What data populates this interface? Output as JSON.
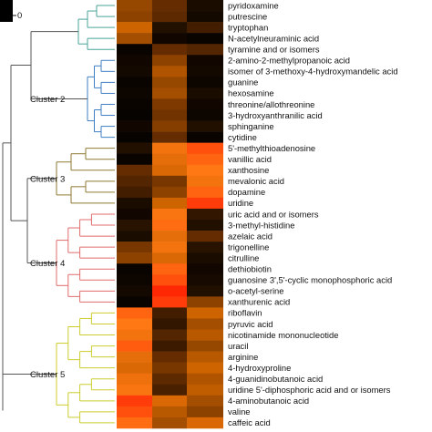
{
  "chart_data": {
    "type": "heatmap",
    "title": "",
    "legend_tick": "0",
    "columns": 3,
    "rows": [
      {
        "label": "pyridoxamine",
        "cluster": 1,
        "values": [
          0.42,
          0.3,
          0.08
        ]
      },
      {
        "label": "putrescine",
        "cluster": 1,
        "values": [
          0.4,
          0.28,
          0.06
        ]
      },
      {
        "label": "tryptophan",
        "cluster": 1,
        "values": [
          0.55,
          0.1,
          0.2
        ]
      },
      {
        "label": "N-acetylneuraminic acid",
        "cluster": 1,
        "values": [
          0.45,
          0.05,
          0.03
        ]
      },
      {
        "label": "tyramine and or isomers",
        "cluster": 1,
        "values": [
          0.03,
          0.3,
          0.25
        ]
      },
      {
        "label": "2-amino-2-methylpropanoic acid",
        "cluster": 2,
        "values": [
          0.05,
          0.4,
          0.05
        ]
      },
      {
        "label": "isomer of 3-methoxy-4-hydroxymandelic acid",
        "cluster": 2,
        "values": [
          0.06,
          0.48,
          0.06
        ]
      },
      {
        "label": "guanine",
        "cluster": 2,
        "values": [
          0.03,
          0.42,
          0.04
        ]
      },
      {
        "label": "hexosamine",
        "cluster": 2,
        "values": [
          0.04,
          0.45,
          0.08
        ]
      },
      {
        "label": "threonine/allothreonine",
        "cluster": 2,
        "values": [
          0.03,
          0.36,
          0.05
        ]
      },
      {
        "label": "3-hydroxyanthranilic acid",
        "cluster": 2,
        "values": [
          0.02,
          0.33,
          0.04
        ]
      },
      {
        "label": "sphinganine",
        "cluster": 2,
        "values": [
          0.05,
          0.38,
          0.1
        ]
      },
      {
        "label": "cytidine",
        "cluster": 2,
        "values": [
          0.02,
          0.3,
          0.03
        ]
      },
      {
        "label": "5'-methylthioadenosine",
        "cluster": 3,
        "values": [
          0.1,
          0.7,
          0.85
        ]
      },
      {
        "label": "vanillic acid",
        "cluster": 3,
        "values": [
          0.03,
          0.65,
          0.8
        ]
      },
      {
        "label": "xanthosine",
        "cluster": 3,
        "values": [
          0.3,
          0.6,
          0.75
        ]
      },
      {
        "label": "mevalonic acid",
        "cluster": 3,
        "values": [
          0.25,
          0.35,
          0.7
        ]
      },
      {
        "label": "dopamine",
        "cluster": 3,
        "values": [
          0.2,
          0.4,
          0.8
        ]
      },
      {
        "label": "uridine",
        "cluster": 3,
        "values": [
          0.08,
          0.55,
          0.9
        ]
      },
      {
        "label": "uric acid and or isomers",
        "cluster": 4,
        "values": [
          0.05,
          0.72,
          0.15
        ]
      },
      {
        "label": "3-methyl-histidine",
        "cluster": 4,
        "values": [
          0.12,
          0.78,
          0.1
        ]
      },
      {
        "label": "azelaic acid",
        "cluster": 4,
        "values": [
          0.08,
          0.65,
          0.3
        ]
      },
      {
        "label": "trigonelline",
        "cluster": 4,
        "values": [
          0.35,
          0.7,
          0.12
        ]
      },
      {
        "label": "citrulline",
        "cluster": 4,
        "values": [
          0.4,
          0.6,
          0.08
        ]
      },
      {
        "label": "dethiobiotin",
        "cluster": 4,
        "values": [
          0.03,
          0.8,
          0.05
        ]
      },
      {
        "label": "guanosine 3',5'-cyclic monophosphoric acid",
        "cluster": 4,
        "values": [
          0.04,
          0.85,
          0.07
        ]
      },
      {
        "label": "o-acetyl-serine",
        "cluster": 4,
        "values": [
          0.06,
          0.95,
          0.1
        ]
      },
      {
        "label": "xanthurenic acid",
        "cluster": 4,
        "values": [
          0.03,
          0.9,
          0.4
        ]
      },
      {
        "label": "riboflavin",
        "cluster": 5,
        "values": [
          0.8,
          0.2,
          0.55
        ]
      },
      {
        "label": "pyruvic acid",
        "cluster": 5,
        "values": [
          0.75,
          0.15,
          0.45
        ]
      },
      {
        "label": "nicotinamide mononucleotide",
        "cluster": 5,
        "values": [
          0.7,
          0.25,
          0.5
        ]
      },
      {
        "label": "uracil",
        "cluster": 5,
        "values": [
          0.82,
          0.18,
          0.42
        ]
      },
      {
        "label": "arginine",
        "cluster": 5,
        "values": [
          0.65,
          0.3,
          0.5
        ]
      },
      {
        "label": "4-hydroxyproline",
        "cluster": 5,
        "values": [
          0.6,
          0.35,
          0.55
        ]
      },
      {
        "label": "4-guanidinobutanoic acid",
        "cluster": 5,
        "values": [
          0.68,
          0.28,
          0.48
        ]
      },
      {
        "label": "uridine 5'-diphosphoric acid and or isomers",
        "cluster": 5,
        "values": [
          0.72,
          0.22,
          0.52
        ]
      },
      {
        "label": "4-aminobutanoic acid",
        "cluster": 5,
        "values": [
          0.9,
          0.6,
          0.45
        ]
      },
      {
        "label": "valine",
        "cluster": 5,
        "values": [
          0.85,
          0.5,
          0.4
        ]
      },
      {
        "label": "caffeic acid",
        "cluster": 5,
        "values": [
          0.78,
          0.45,
          0.6
        ]
      }
    ],
    "clusters": [
      {
        "id": 1,
        "label": "",
        "color": "#4aa39a"
      },
      {
        "id": 2,
        "label": "Cluster 2",
        "color": "#3f7fc4"
      },
      {
        "id": 3,
        "label": "Cluster 3",
        "color": "#8f7a33"
      },
      {
        "id": 4,
        "label": "Cluster 4",
        "color": "#e06b6b"
      },
      {
        "id": 5,
        "label": "Cluster 5",
        "color": "#cccc2e"
      }
    ],
    "tree_color": "#555555",
    "colormap": "black-red-orange-yellow"
  }
}
